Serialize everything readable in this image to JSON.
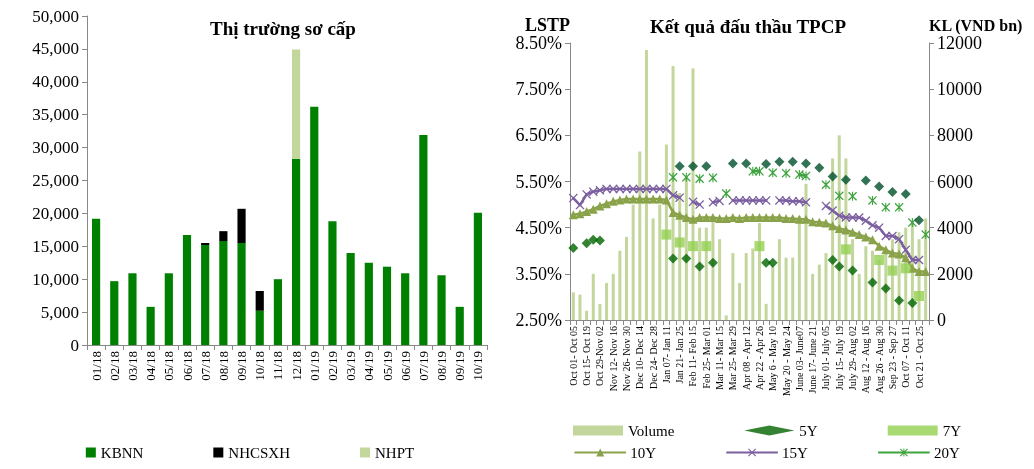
{
  "chart_data": [
    {
      "type": "bar",
      "title": "Thị trường sơ cấp",
      "stacked": true,
      "legend": "bottom",
      "categories": [
        "01/18",
        "02/18",
        "03/18",
        "04/18",
        "05/18",
        "06/18",
        "07/18",
        "08/18",
        "09/18",
        "10/18",
        "11/18",
        "12/18",
        "01/19",
        "02/19",
        "03/19",
        "04/19",
        "05/19",
        "06/19",
        "07/19",
        "08/19",
        "09/19",
        "10/19"
      ],
      "ylim": [
        0,
        50000
      ],
      "yticks": [
        {
          "value": 0,
          "label": "0"
        },
        {
          "value": 5000,
          "label": "5,000"
        },
        {
          "value": 10000,
          "label": "10,000"
        },
        {
          "value": 15000,
          "label": "15,000"
        },
        {
          "value": 20000,
          "label": "20,000"
        },
        {
          "value": 25000,
          "label": "25,000"
        },
        {
          "value": 30000,
          "label": "30,000"
        },
        {
          "value": 35000,
          "label": "35,000"
        },
        {
          "value": 40000,
          "label": "40,000"
        },
        {
          "value": 45000,
          "label": "45,000"
        },
        {
          "value": 50000,
          "label": "50,000"
        }
      ],
      "series": [
        {
          "name": "KBNN",
          "color": "#008000",
          "values": [
            19200,
            9700,
            10900,
            5800,
            10900,
            16700,
            15200,
            15800,
            15500,
            5200,
            10000,
            28300,
            36200,
            18800,
            14000,
            12500,
            11900,
            10900,
            31900,
            10600,
            5800,
            20100
          ]
        },
        {
          "name": "NHCSXH",
          "color": "#000000",
          "values": [
            null,
            null,
            null,
            null,
            null,
            null,
            300,
            1500,
            5200,
            3000,
            null,
            null,
            null,
            null,
            null,
            null,
            null,
            null,
            null,
            null,
            null,
            null
          ]
        },
        {
          "name": "NHPT",
          "color": "#c3d69b",
          "values": [
            null,
            null,
            null,
            null,
            null,
            null,
            null,
            null,
            null,
            null,
            null,
            16600,
            null,
            null,
            null,
            null,
            null,
            null,
            null,
            null,
            null,
            null
          ]
        }
      ]
    },
    {
      "type": "line",
      "title": "Kết quả đấu thầu TPCP",
      "ylabel": "LSTP",
      "y2label": "KL (VND bn)",
      "legend": "bottom",
      "categories": [
        "Oct 01- Oct 05",
        null,
        "Oct 15- Oct 19",
        null,
        "Oct 29-Nov 02",
        null,
        "Nov 12- Nov 16",
        null,
        "Nov 26- Nov 30",
        null,
        "Dec 10- Dec 14",
        null,
        "Dec 24- Dec 28",
        null,
        "Jan 07- Jan 11",
        null,
        "Jan 21- Jan 25",
        null,
        "Feb 11- Feb 15",
        null,
        "Feb 25- Mar 01",
        null,
        "Mar 11- Mar 15",
        null,
        "Mar 25- Mar 29",
        null,
        "Apr 08 - Apr 12",
        null,
        "Apr 22 - Apr 26",
        null,
        "May 6 - May 10",
        null,
        "May 20 - May 24",
        null,
        "June 03- June07",
        null,
        "June 17- June 21",
        null,
        "July 01- July 05",
        null,
        "July 15- July 19",
        null,
        "July 29- Aug 02",
        null,
        "Aug 12 - Aug 16",
        null,
        "Aug 26 - Aug 30",
        null,
        "Sep 23 - Sep 27",
        null,
        "Oct 07 - Oct 11",
        null,
        "Oct 21 - Oct 25",
        null
      ],
      "ylim": [
        2.5,
        8.5
      ],
      "yticks": [
        {
          "value": 2.5,
          "label": "2.50%"
        },
        {
          "value": 3.5,
          "label": "3.50%"
        },
        {
          "value": 4.5,
          "label": "4.50%"
        },
        {
          "value": 5.5,
          "label": "5.50%"
        },
        {
          "value": 6.5,
          "label": "6.50%"
        },
        {
          "value": 7.5,
          "label": "7.50%"
        },
        {
          "value": 8.5,
          "label": "8.50%"
        }
      ],
      "y2lim": [
        0,
        12000
      ],
      "y2ticks": [
        0,
        2000,
        4000,
        6000,
        8000,
        10000,
        12000
      ],
      "series": [
        {
          "name": "Volume",
          "type": "bar",
          "axis": "y2",
          "color": "#c3d69b",
          "values": [
            1200,
            1100,
            400,
            2000,
            700,
            1600,
            2000,
            3000,
            3600,
            5000,
            7300,
            11700,
            4400,
            5000,
            7600,
            11000,
            5500,
            6200,
            10900,
            4000,
            4000,
            4500,
            3500,
            200,
            2900,
            1600,
            2900,
            3100,
            4200,
            700,
            2400,
            3500,
            2700,
            2700,
            4500,
            5900,
            2000,
            2400,
            2900,
            7000,
            8000,
            7000,
            3500,
            2000,
            3200,
            3000,
            2600,
            2900,
            3500,
            3800,
            4000,
            4300,
            3500,
            4400
          ]
        },
        {
          "name": "5Y",
          "type": "scatter",
          "color": "#006400",
          "marker": "diamond",
          "values": [
            4.06,
            null,
            4.16,
            4.24,
            4.22,
            null,
            null,
            null,
            null,
            null,
            null,
            null,
            null,
            null,
            null,
            3.83,
            null,
            3.83,
            null,
            3.66,
            null,
            3.74,
            null,
            null,
            null,
            null,
            null,
            null,
            null,
            3.74,
            3.74,
            null,
            null,
            null,
            null,
            null,
            null,
            null,
            null,
            3.8,
            3.66,
            null,
            3.57,
            null,
            null,
            3.31,
            null,
            3.18,
            null,
            2.92,
            null,
            2.87,
            null,
            null
          ]
        },
        {
          "type": "scatter",
          "color": "#00502a",
          "marker": "diamond",
          "values": [
            null,
            null,
            null,
            null,
            null,
            null,
            null,
            null,
            null,
            null,
            null,
            null,
            null,
            null,
            null,
            null,
            5.83,
            null,
            5.83,
            null,
            5.83,
            null,
            null,
            null,
            5.89,
            null,
            5.89,
            null,
            null,
            5.88,
            null,
            5.93,
            null,
            5.93,
            null,
            5.89,
            null,
            5.8,
            null,
            5.61,
            null,
            5.54,
            null,
            null,
            5.52,
            null,
            5.39,
            null,
            5.27,
            null,
            5.23,
            null,
            4.66,
            null
          ]
        },
        {
          "name": "7Y",
          "type": "scatter",
          "color": "#92d050",
          "marker": "square",
          "values": [
            null,
            null,
            null,
            null,
            null,
            null,
            null,
            null,
            null,
            null,
            null,
            null,
            null,
            null,
            4.35,
            null,
            4.18,
            null,
            4.1,
            null,
            4.1,
            null,
            null,
            null,
            null,
            null,
            null,
            null,
            4.1,
            null,
            null,
            null,
            null,
            null,
            null,
            null,
            null,
            null,
            null,
            null,
            null,
            4.03,
            null,
            null,
            null,
            null,
            3.8,
            null,
            3.57,
            null,
            3.62,
            null,
            3.02,
            null
          ]
        },
        {
          "name": "10Y",
          "color": "#8aa34a",
          "marker": "triangle",
          "line_style": "solid",
          "values": [
            4.78,
            4.8,
            4.85,
            4.9,
            4.97,
            5.02,
            5.07,
            5.1,
            5.12,
            5.12,
            5.12,
            5.12,
            5.12,
            5.12,
            5.1,
            4.83,
            4.77,
            4.72,
            4.68,
            4.72,
            4.72,
            4.72,
            4.7,
            4.7,
            4.72,
            4.7,
            4.72,
            4.72,
            4.72,
            4.72,
            4.72,
            4.72,
            4.7,
            4.7,
            4.68,
            4.68,
            4.63,
            4.62,
            4.6,
            4.54,
            4.48,
            4.45,
            4.4,
            4.35,
            4.3,
            4.24,
            4.1,
            4.02,
            3.95,
            3.93,
            3.85,
            3.62,
            3.55,
            3.55
          ]
        },
        {
          "name": "15Y",
          "color": "#7b5fa0",
          "marker": "cross",
          "line_style": "solid",
          "values": [
            5.14,
            4.99,
            5.22,
            5.28,
            5.31,
            5.34,
            5.34,
            5.34,
            5.34,
            5.34,
            5.34,
            5.34,
            5.34,
            5.34,
            5.34,
            5.2,
            5.15,
            null,
            5.06,
            5.0,
            null,
            5.05,
            5.08,
            null,
            5.09,
            5.09,
            5.09,
            5.09,
            5.09,
            5.09,
            null,
            5.09,
            5.09,
            5.07,
            5.07,
            5.05,
            null,
            null,
            4.97,
            4.87,
            4.76,
            4.72,
            4.72,
            4.72,
            4.65,
            4.55,
            4.5,
            4.32,
            4.32,
            4.25,
            4.02,
            3.8,
            3.8,
            null
          ]
        },
        {
          "name": "20Y",
          "color": "#3fa33f",
          "marker": "star",
          "line_style": "solid",
          "values": [
            null,
            null,
            null,
            null,
            null,
            null,
            null,
            null,
            null,
            null,
            null,
            null,
            null,
            null,
            null,
            5.59,
            null,
            5.59,
            null,
            5.56,
            null,
            5.58,
            null,
            5.24,
            null,
            null,
            null,
            5.72,
            5.72,
            null,
            5.69,
            null,
            5.68,
            null,
            5.65,
            5.62,
            null,
            null,
            5.43,
            null,
            5.19,
            null,
            5.18,
            null,
            null,
            5.09,
            null,
            4.94,
            null,
            4.94,
            null,
            4.61,
            null,
            4.35
          ]
        }
      ]
    }
  ]
}
